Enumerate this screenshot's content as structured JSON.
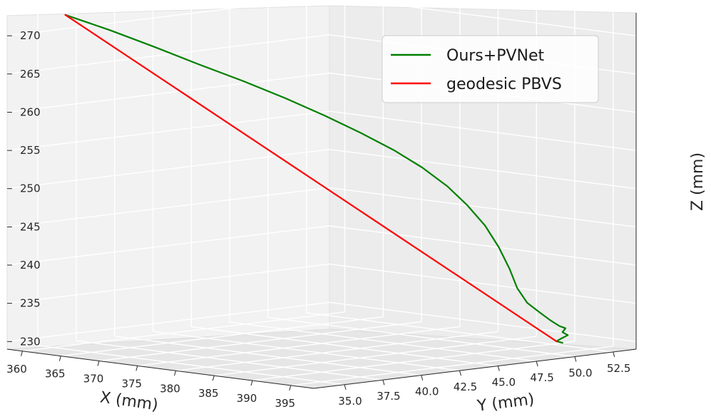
{
  "chart_data": {
    "type": "line",
    "projection": "3d",
    "title": "",
    "xlabel": "X (mm)",
    "ylabel": "Y (mm)",
    "zlabel": "Z (mm)",
    "x_ticks": [
      "360",
      "365",
      "370",
      "375",
      "380",
      "385",
      "390",
      "395"
    ],
    "y_ticks": [
      "35.0",
      "37.5",
      "40.0",
      "42.5",
      "45.0",
      "47.5",
      "50.0",
      "52.5"
    ],
    "z_ticks": [
      "270",
      "265",
      "260",
      "255",
      "250",
      "245",
      "240",
      "235",
      "230"
    ],
    "xlim": [
      358,
      398
    ],
    "ylim": [
      33,
      54
    ],
    "zlim": [
      229,
      273
    ],
    "grid": true,
    "legend_position": "top-right",
    "series": [
      {
        "name": "Ours+PVNet",
        "color": "#008000",
        "points": [
          {
            "x": 362.0,
            "y": 34.8,
            "z": 272.8
          },
          {
            "x": 364.8,
            "y": 36.3,
            "z": 270.8
          },
          {
            "x": 367.6,
            "y": 37.8,
            "z": 268.6
          },
          {
            "x": 370.4,
            "y": 39.3,
            "z": 266.3
          },
          {
            "x": 373.2,
            "y": 40.8,
            "z": 264.1
          },
          {
            "x": 375.8,
            "y": 42.2,
            "z": 261.9
          },
          {
            "x": 378.4,
            "y": 43.5,
            "z": 259.6
          },
          {
            "x": 380.9,
            "y": 44.6,
            "z": 257.4
          },
          {
            "x": 383.2,
            "y": 45.6,
            "z": 255.2
          },
          {
            "x": 385.3,
            "y": 46.4,
            "z": 253.0
          },
          {
            "x": 387.2,
            "y": 47.1,
            "z": 250.6
          },
          {
            "x": 388.8,
            "y": 47.6,
            "z": 248.2
          },
          {
            "x": 390.1,
            "y": 48.1,
            "z": 245.6
          },
          {
            "x": 391.1,
            "y": 48.5,
            "z": 242.8
          },
          {
            "x": 391.9,
            "y": 48.8,
            "z": 240.0
          },
          {
            "x": 392.5,
            "y": 49.0,
            "z": 237.5
          },
          {
            "x": 393.2,
            "y": 49.3,
            "z": 235.6
          },
          {
            "x": 394.1,
            "y": 49.7,
            "z": 234.3
          },
          {
            "x": 394.9,
            "y": 50.0,
            "z": 233.3
          },
          {
            "x": 395.4,
            "y": 50.3,
            "z": 232.6
          },
          {
            "x": 395.8,
            "y": 50.5,
            "z": 232.3
          },
          {
            "x": 395.6,
            "y": 50.4,
            "z": 231.8
          },
          {
            "x": 395.9,
            "y": 50.6,
            "z": 231.4
          },
          {
            "x": 395.5,
            "y": 50.3,
            "z": 230.9
          },
          {
            "x": 395.2,
            "y": 50.2,
            "z": 230.6
          },
          {
            "x": 395.6,
            "y": 50.4,
            "z": 230.4
          }
        ]
      },
      {
        "name": "geodesic PBVS",
        "color": "#ff0000",
        "points": [
          {
            "x": 362.0,
            "y": 34.8,
            "z": 272.8
          },
          {
            "x": 395.2,
            "y": 50.2,
            "z": 230.6
          }
        ]
      }
    ]
  }
}
